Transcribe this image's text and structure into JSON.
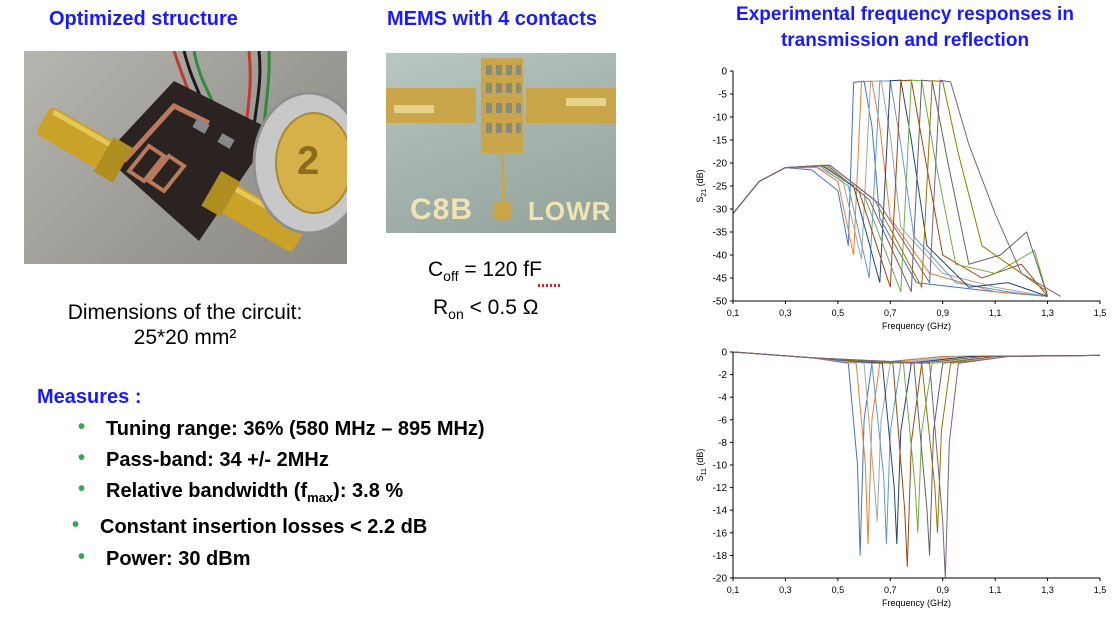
{
  "titles": {
    "optimized": "Optimized structure",
    "mems": "MEMS with 4 contacts",
    "experimental_line1": "Experimental frequency responses in",
    "experimental_line2": "transmission and reflection"
  },
  "dimensions": {
    "line1": "Dimensions of the circuit:",
    "line2": "25*20 mm²"
  },
  "mems_params": {
    "coff_main": "C",
    "coff_sub": "off",
    "coff_value": " = 120 fF",
    "ron_main": "R",
    "ron_sub": "on",
    "ron_value": " < 0.5 Ω"
  },
  "photo": {
    "coin_label": "2",
    "chip_label_left": "C8B",
    "chip_label_right": "LOWR"
  },
  "measures": {
    "heading": "Measures :",
    "items": [
      "Tuning range: 36%  (580 MHz – 895 MHz)",
      "Pass-band: 34 +/- 2MHz",
      "Relative bandwidth (f",
      "Constant insertion losses < 2.2 dB",
      "Power: 30 dBm"
    ],
    "item3_sub": "max",
    "item3_tail": "): 3.8 %"
  },
  "colors": {
    "title_blue": "#1a1aff",
    "bullet_green": "#2fa84f",
    "series": [
      "#4472c4",
      "#ed7d31",
      "#a5a5a5",
      "#5b9bd5",
      "#264478",
      "#9e480e",
      "#70ad47",
      "#636363",
      "#997300",
      "#7f6084",
      "#c0504d"
    ]
  },
  "chart_data": [
    {
      "type": "line",
      "title": "",
      "xlabel": "Frequency (GHz)",
      "ylabel_main": "S",
      "ylabel_sub": "21",
      "ylabel_tail": " (dB)",
      "xlim": [
        0.1,
        1.5
      ],
      "ylim": [
        -50,
        0
      ],
      "xticks": [
        "0,1",
        "0,3",
        "0,5",
        "0,7",
        "0,9",
        "1,1",
        "1,3",
        "1,5"
      ],
      "yticks": [
        "0",
        "-5",
        "-10",
        "-15",
        "-20",
        "-25",
        "-30",
        "-35",
        "-40",
        "-45",
        "-50"
      ],
      "grid": false,
      "centers": [
        0.58,
        0.61,
        0.645,
        0.68,
        0.72,
        0.76,
        0.8,
        0.845,
        0.875,
        0.895
      ],
      "series": [
        {
          "values": [
            [
              0.1,
              -31
            ],
            [
              0.2,
              -24
            ],
            [
              0.3,
              -21
            ],
            [
              0.4,
              -21.5
            ],
            [
              0.5,
              -26
            ],
            [
              0.54,
              -38
            ],
            [
              0.56,
              -2.5
            ],
            [
              0.6,
              -2.2
            ],
            [
              0.63,
              -12
            ],
            [
              0.66,
              -32
            ],
            [
              0.8,
              -46
            ],
            [
              1.1,
              -48
            ],
            [
              1.3,
              -49
            ]
          ]
        },
        {
          "values": [
            [
              0.1,
              -31
            ],
            [
              0.2,
              -24
            ],
            [
              0.3,
              -21
            ],
            [
              0.42,
              -21
            ],
            [
              0.5,
              -24
            ],
            [
              0.56,
              -40
            ],
            [
              0.59,
              -2.4
            ],
            [
              0.63,
              -2.2
            ],
            [
              0.66,
              -12
            ],
            [
              0.7,
              -32
            ],
            [
              0.85,
              -44
            ],
            [
              1.1,
              -48
            ],
            [
              1.3,
              -49
            ]
          ]
        },
        {
          "values": [
            [
              0.1,
              -31
            ],
            [
              0.2,
              -24
            ],
            [
              0.3,
              -21
            ],
            [
              0.42,
              -20.8
            ],
            [
              0.52,
              -24
            ],
            [
              0.59,
              -41
            ],
            [
              0.625,
              -2.3
            ],
            [
              0.665,
              -2.1
            ],
            [
              0.7,
              -14
            ],
            [
              0.74,
              -34
            ],
            [
              0.9,
              -44
            ],
            [
              1.1,
              -47
            ],
            [
              1.3,
              -49
            ]
          ]
        },
        {
          "values": [
            [
              0.1,
              -31
            ],
            [
              0.2,
              -24
            ],
            [
              0.3,
              -21
            ],
            [
              0.43,
              -20.6
            ],
            [
              0.54,
              -25
            ],
            [
              0.62,
              -45
            ],
            [
              0.66,
              -2.2
            ],
            [
              0.7,
              -2.1
            ],
            [
              0.74,
              -16
            ],
            [
              0.79,
              -36
            ],
            [
              0.95,
              -46
            ],
            [
              1.15,
              -48
            ],
            [
              1.3,
              -49
            ]
          ]
        },
        {
          "values": [
            [
              0.1,
              -31
            ],
            [
              0.2,
              -24
            ],
            [
              0.3,
              -21
            ],
            [
              0.44,
              -20.6
            ],
            [
              0.56,
              -25
            ],
            [
              0.66,
              -46
            ],
            [
              0.7,
              -2.1
            ],
            [
              0.74,
              -2.0
            ],
            [
              0.78,
              -15
            ],
            [
              0.84,
              -38
            ],
            [
              1.0,
              -47
            ],
            [
              1.15,
              -46
            ],
            [
              1.3,
              -49
            ]
          ]
        },
        {
          "values": [
            [
              0.1,
              -31
            ],
            [
              0.2,
              -24
            ],
            [
              0.3,
              -21
            ],
            [
              0.44,
              -20.5
            ],
            [
              0.58,
              -26
            ],
            [
              0.7,
              -47
            ],
            [
              0.74,
              -2.1
            ],
            [
              0.78,
              -2.0
            ],
            [
              0.83,
              -18
            ],
            [
              0.9,
              -40
            ],
            [
              1.05,
              -45
            ],
            [
              1.2,
              -42
            ],
            [
              1.3,
              -49
            ]
          ]
        },
        {
          "values": [
            [
              0.1,
              -31
            ],
            [
              0.2,
              -24
            ],
            [
              0.3,
              -21
            ],
            [
              0.45,
              -20.5
            ],
            [
              0.6,
              -27
            ],
            [
              0.74,
              -48
            ],
            [
              0.78,
              -2.0
            ],
            [
              0.82,
              -2.1
            ],
            [
              0.87,
              -19
            ],
            [
              0.95,
              -42
            ],
            [
              1.1,
              -44
            ],
            [
              1.25,
              -39
            ],
            [
              1.3,
              -49
            ]
          ]
        },
        {
          "values": [
            [
              0.1,
              -31
            ],
            [
              0.2,
              -24
            ],
            [
              0.3,
              -21
            ],
            [
              0.46,
              -20.5
            ],
            [
              0.62,
              -28
            ],
            [
              0.78,
              -48
            ],
            [
              0.82,
              -2.0
            ],
            [
              0.86,
              -2.2
            ],
            [
              0.92,
              -20
            ],
            [
              1.0,
              -42
            ],
            [
              1.12,
              -40
            ],
            [
              1.22,
              -35
            ],
            [
              1.3,
              -49
            ]
          ]
        },
        {
          "values": [
            [
              0.1,
              -31
            ],
            [
              0.2,
              -24
            ],
            [
              0.3,
              -21
            ],
            [
              0.47,
              -20.5
            ],
            [
              0.64,
              -28
            ],
            [
              0.82,
              -47
            ],
            [
              0.86,
              -2.1
            ],
            [
              0.9,
              -2.3
            ],
            [
              0.96,
              -18
            ],
            [
              1.05,
              -38
            ],
            [
              1.15,
              -42
            ],
            [
              1.3,
              -48
            ]
          ]
        },
        {
          "values": [
            [
              0.1,
              -31
            ],
            [
              0.2,
              -24
            ],
            [
              0.3,
              -21
            ],
            [
              0.47,
              -20.5
            ],
            [
              0.66,
              -29
            ],
            [
              0.85,
              -46
            ],
            [
              0.89,
              -2.0
            ],
            [
              0.93,
              -2.4
            ],
            [
              1.0,
              -16
            ],
            [
              1.1,
              -31
            ],
            [
              1.2,
              -44
            ],
            [
              1.35,
              -49
            ]
          ]
        }
      ]
    },
    {
      "type": "line",
      "title": "",
      "xlabel": "Frequency (GHz)",
      "ylabel_main": "S",
      "ylabel_sub": "11",
      "ylabel_tail": " (dB)",
      "xlim": [
        0.1,
        1.5
      ],
      "ylim": [
        -20,
        0
      ],
      "xticks": [
        "0,1",
        "0,3",
        "0,5",
        "0,7",
        "0,9",
        "1,1",
        "1,3",
        "1,5"
      ],
      "yticks": [
        "0",
        "-2",
        "-4",
        "-6",
        "-8",
        "-10",
        "-12",
        "-14",
        "-16",
        "-18",
        "-20"
      ],
      "grid": false,
      "series": [
        {
          "values": [
            [
              0.1,
              0
            ],
            [
              0.4,
              -0.5
            ],
            [
              0.54,
              -1
            ],
            [
              0.575,
              -10
            ],
            [
              0.585,
              -18
            ],
            [
              0.6,
              -6
            ],
            [
              0.63,
              -1
            ],
            [
              0.9,
              -0.4
            ],
            [
              1.5,
              -0.3
            ]
          ]
        },
        {
          "values": [
            [
              0.1,
              0
            ],
            [
              0.4,
              -0.5
            ],
            [
              0.57,
              -1
            ],
            [
              0.605,
              -10
            ],
            [
              0.615,
              -17
            ],
            [
              0.63,
              -6
            ],
            [
              0.66,
              -1
            ],
            [
              0.9,
              -0.4
            ],
            [
              1.5,
              -0.3
            ]
          ]
        },
        {
          "values": [
            [
              0.1,
              0
            ],
            [
              0.4,
              -0.5
            ],
            [
              0.6,
              -1
            ],
            [
              0.64,
              -12
            ],
            [
              0.65,
              -15
            ],
            [
              0.665,
              -6
            ],
            [
              0.7,
              -1
            ],
            [
              0.95,
              -0.4
            ],
            [
              1.5,
              -0.3
            ]
          ]
        },
        {
          "values": [
            [
              0.1,
              0
            ],
            [
              0.4,
              -0.5
            ],
            [
              0.63,
              -1
            ],
            [
              0.675,
              -11
            ],
            [
              0.685,
              -17
            ],
            [
              0.7,
              -7
            ],
            [
              0.74,
              -1
            ],
            [
              1.0,
              -0.4
            ],
            [
              1.5,
              -0.3
            ]
          ]
        },
        {
          "values": [
            [
              0.1,
              0
            ],
            [
              0.4,
              -0.5
            ],
            [
              0.67,
              -1
            ],
            [
              0.715,
              -12
            ],
            [
              0.725,
              -17
            ],
            [
              0.74,
              -7
            ],
            [
              0.78,
              -1
            ],
            [
              1.0,
              -0.4
            ],
            [
              1.5,
              -0.3
            ]
          ]
        },
        {
          "values": [
            [
              0.1,
              0
            ],
            [
              0.4,
              -0.5
            ],
            [
              0.71,
              -1
            ],
            [
              0.755,
              -14
            ],
            [
              0.765,
              -19
            ],
            [
              0.78,
              -8
            ],
            [
              0.82,
              -1
            ],
            [
              1.05,
              -0.4
            ],
            [
              1.5,
              -0.3
            ]
          ]
        },
        {
          "values": [
            [
              0.1,
              0
            ],
            [
              0.4,
              -0.5
            ],
            [
              0.75,
              -1
            ],
            [
              0.795,
              -12
            ],
            [
              0.805,
              -16
            ],
            [
              0.82,
              -7
            ],
            [
              0.86,
              -1
            ],
            [
              1.1,
              -0.4
            ],
            [
              1.5,
              -0.3
            ]
          ]
        },
        {
          "values": [
            [
              0.1,
              0
            ],
            [
              0.4,
              -0.5
            ],
            [
              0.79,
              -1
            ],
            [
              0.84,
              -14
            ],
            [
              0.85,
              -18
            ],
            [
              0.865,
              -7
            ],
            [
              0.9,
              -1
            ],
            [
              1.1,
              -0.4
            ],
            [
              1.5,
              -0.3
            ]
          ]
        },
        {
          "values": [
            [
              0.1,
              0
            ],
            [
              0.4,
              -0.5
            ],
            [
              0.82,
              -1
            ],
            [
              0.87,
              -12
            ],
            [
              0.88,
              -16
            ],
            [
              0.895,
              -7
            ],
            [
              0.93,
              -1
            ],
            [
              1.15,
              -0.4
            ],
            [
              1.5,
              -0.3
            ]
          ]
        },
        {
          "values": [
            [
              0.1,
              0
            ],
            [
              0.4,
              -0.5
            ],
            [
              0.85,
              -1
            ],
            [
              0.9,
              -15
            ],
            [
              0.91,
              -20
            ],
            [
              0.925,
              -8
            ],
            [
              0.96,
              -1
            ],
            [
              1.15,
              -0.4
            ],
            [
              1.5,
              -0.3
            ]
          ]
        }
      ]
    }
  ]
}
